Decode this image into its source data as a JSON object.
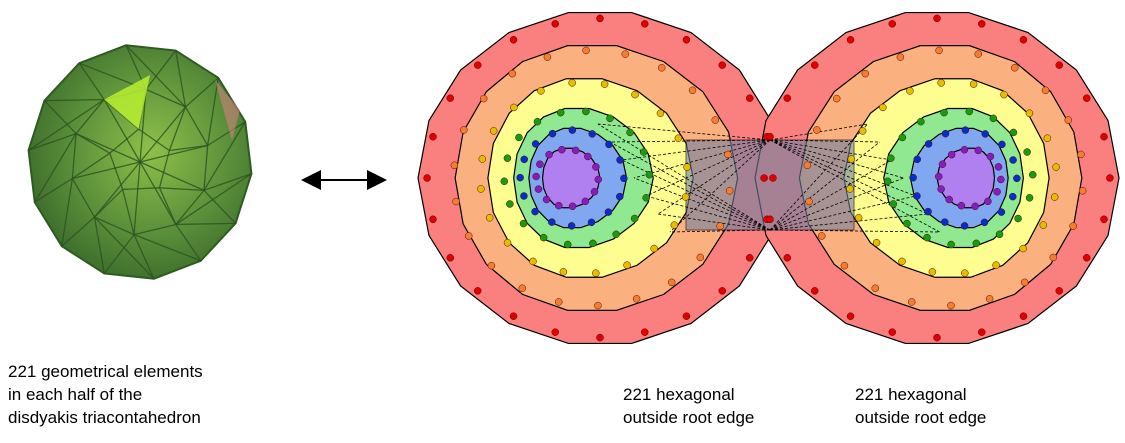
{
  "left_caption": {
    "lines": [
      "221 geometrical elements",
      "in each half of the",
      "disdyakis triacontahedron"
    ]
  },
  "middle_caption": {
    "lines": [
      "221 hexagonal",
      "outside root edge"
    ]
  },
  "right_caption": {
    "lines": [
      "221 hexagonal",
      "outside root edge"
    ]
  }
}
